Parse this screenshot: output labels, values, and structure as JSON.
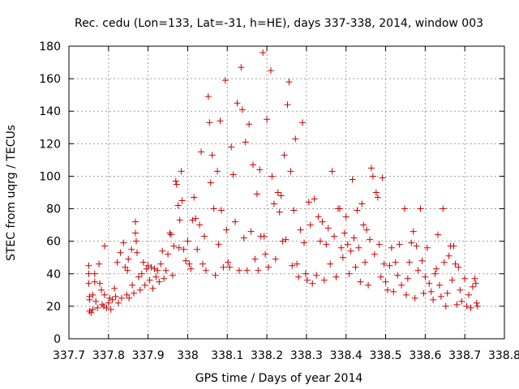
{
  "chart_data": {
    "type": "scatter",
    "title": "Rec. cedu (Lon=133, Lat=-31, h=HE), days 337-338, 2014, window 003",
    "xlabel": "GPS time / Days of year 2014",
    "ylabel": "STEC from uqrg / TECUs",
    "xlim": [
      337.7,
      338.8
    ],
    "ylim": [
      0,
      180
    ],
    "xticks": [
      337.7,
      337.8,
      337.9,
      338.0,
      338.1,
      338.2,
      338.3,
      338.4,
      338.5,
      338.6,
      338.7,
      338.8
    ],
    "xtick_labels": [
      "337.7",
      "337.8",
      "337.9",
      "338",
      "338.1",
      "338.2",
      "338.3",
      "338.4",
      "338.5",
      "338.6",
      "338.7",
      "338.8"
    ],
    "yticks": [
      0,
      20,
      40,
      60,
      80,
      100,
      120,
      140,
      160,
      180
    ],
    "ytick_labels": [
      "0",
      "20",
      "40",
      "60",
      "80",
      "100",
      "120",
      "140",
      "160",
      "180"
    ],
    "grid": true,
    "marker": "+",
    "color": "#cc0000",
    "series": [
      {
        "points": [
          [
            337.75,
            45
          ],
          [
            337.75,
            40
          ],
          [
            337.75,
            34
          ],
          [
            337.752,
            26
          ],
          [
            337.752,
            24
          ],
          [
            337.752,
            17
          ],
          [
            337.756,
            16
          ],
          [
            337.76,
            27
          ],
          [
            337.76,
            18
          ],
          [
            337.765,
            40
          ],
          [
            337.765,
            35
          ],
          [
            337.768,
            23
          ],
          [
            337.772,
            19
          ],
          [
            337.776,
            46
          ],
          [
            337.778,
            34
          ],
          [
            337.782,
            30
          ],
          [
            337.784,
            21
          ],
          [
            337.788,
            20
          ],
          [
            337.79,
            27
          ],
          [
            337.79,
            57
          ],
          [
            337.795,
            19
          ],
          [
            337.8,
            22
          ],
          [
            337.803,
            25
          ],
          [
            337.806,
            18
          ],
          [
            337.81,
            24
          ],
          [
            337.815,
            31
          ],
          [
            337.818,
            26
          ],
          [
            337.822,
            47
          ],
          [
            337.825,
            22
          ],
          [
            337.83,
            53
          ],
          [
            337.833,
            25
          ],
          [
            337.838,
            59
          ],
          [
            337.842,
            44
          ],
          [
            337.846,
            27
          ],
          [
            337.848,
            42
          ],
          [
            337.85,
            49
          ],
          [
            337.852,
            25
          ],
          [
            337.858,
            55
          ],
          [
            337.86,
            33
          ],
          [
            337.864,
            28
          ],
          [
            337.868,
            72
          ],
          [
            337.868,
            65
          ],
          [
            337.87,
            60
          ],
          [
            337.872,
            53
          ],
          [
            337.876,
            38
          ],
          [
            337.88,
            30
          ],
          [
            337.884,
            40
          ],
          [
            337.888,
            47
          ],
          [
            337.892,
            33
          ],
          [
            337.896,
            43
          ],
          [
            337.9,
            45
          ],
          [
            337.904,
            36
          ],
          [
            337.908,
            44
          ],
          [
            337.912,
            31
          ],
          [
            337.916,
            43
          ],
          [
            337.92,
            38
          ],
          [
            337.924,
            42
          ],
          [
            337.928,
            35
          ],
          [
            337.932,
            46
          ],
          [
            337.936,
            54
          ],
          [
            337.94,
            37
          ],
          [
            337.945,
            42
          ],
          [
            337.95,
            52
          ],
          [
            337.955,
            65
          ],
          [
            337.958,
            64
          ],
          [
            337.962,
            39
          ],
          [
            337.965,
            57
          ],
          [
            337.97,
            97
          ],
          [
            337.972,
            95
          ],
          [
            337.976,
            82
          ],
          [
            337.978,
            56
          ],
          [
            337.98,
            73
          ],
          [
            337.984,
            103
          ],
          [
            337.986,
            85
          ],
          [
            337.99,
            55
          ],
          [
            337.995,
            48
          ],
          [
            338.0,
            60
          ],
          [
            338.004,
            46
          ],
          [
            338.008,
            43
          ],
          [
            338.012,
            73
          ],
          [
            338.016,
            87
          ],
          [
            338.02,
            74
          ],
          [
            338.024,
            55
          ],
          [
            338.03,
            70
          ],
          [
            338.034,
            115
          ],
          [
            338.038,
            46
          ],
          [
            338.042,
            63
          ],
          [
            338.046,
            42
          ],
          [
            338.052,
            149
          ],
          [
            338.055,
            133
          ],
          [
            338.058,
            96
          ],
          [
            338.062,
            113
          ],
          [
            338.066,
            80
          ],
          [
            338.07,
            39
          ],
          [
            338.075,
            103
          ],
          [
            338.078,
            58
          ],
          [
            338.082,
            134
          ],
          [
            338.085,
            79
          ],
          [
            338.09,
            44
          ],
          [
            338.095,
            159
          ],
          [
            338.098,
            67
          ],
          [
            338.102,
            47
          ],
          [
            338.106,
            44
          ],
          [
            338.11,
            118
          ],
          [
            338.115,
            101
          ],
          [
            338.12,
            72
          ],
          [
            338.125,
            145
          ],
          [
            338.13,
            42
          ],
          [
            338.135,
            167
          ],
          [
            338.138,
            141
          ],
          [
            338.142,
            62
          ],
          [
            338.146,
            121
          ],
          [
            338.15,
            42
          ],
          [
            338.155,
            132
          ],
          [
            338.16,
            66
          ],
          [
            338.165,
            107
          ],
          [
            338.17,
            49
          ],
          [
            338.175,
            89
          ],
          [
            338.178,
            42
          ],
          [
            338.182,
            104
          ],
          [
            338.185,
            63
          ],
          [
            338.19,
            176
          ],
          [
            338.193,
            63
          ],
          [
            338.196,
            52
          ],
          [
            338.2,
            135
          ],
          [
            338.204,
            44
          ],
          [
            338.21,
            165
          ],
          [
            338.213,
            100
          ],
          [
            338.218,
            83
          ],
          [
            338.222,
            49
          ],
          [
            338.228,
            90
          ],
          [
            338.232,
            78
          ],
          [
            338.236,
            88
          ],
          [
            338.24,
            60
          ],
          [
            338.244,
            113
          ],
          [
            338.248,
            61
          ],
          [
            338.252,
            144
          ],
          [
            338.256,
            158
          ],
          [
            338.26,
            103
          ],
          [
            338.264,
            45
          ],
          [
            338.268,
            79
          ],
          [
            338.272,
            123
          ],
          [
            338.276,
            46
          ],
          [
            338.28,
            38
          ],
          [
            338.285,
            67
          ],
          [
            338.29,
            133
          ],
          [
            338.294,
            59
          ],
          [
            338.298,
            40
          ],
          [
            338.302,
            36
          ],
          [
            338.306,
            84
          ],
          [
            338.31,
            70
          ],
          [
            338.315,
            34
          ],
          [
            338.32,
            86
          ],
          [
            338.325,
            39
          ],
          [
            338.33,
            75
          ],
          [
            338.335,
            60
          ],
          [
            338.34,
            72
          ],
          [
            338.345,
            36
          ],
          [
            338.35,
            58
          ],
          [
            338.355,
            68
          ],
          [
            338.36,
            46
          ],
          [
            338.365,
            103
          ],
          [
            338.37,
            63
          ],
          [
            338.375,
            38
          ],
          [
            338.38,
            80
          ],
          [
            338.384,
            80
          ],
          [
            338.388,
            56
          ],
          [
            338.392,
            50
          ],
          [
            338.396,
            65
          ],
          [
            338.4,
            75
          ],
          [
            338.404,
            58
          ],
          [
            338.408,
            40
          ],
          [
            338.412,
            54
          ],
          [
            338.416,
            98
          ],
          [
            338.42,
            62
          ],
          [
            338.424,
            44
          ],
          [
            338.428,
            79
          ],
          [
            338.432,
            56
          ],
          [
            338.436,
            35
          ],
          [
            338.44,
            83
          ],
          [
            338.444,
            70
          ],
          [
            338.448,
            47
          ],
          [
            338.452,
            67
          ],
          [
            338.456,
            33
          ],
          [
            338.46,
            61
          ],
          [
            338.464,
            105
          ],
          [
            338.468,
            100
          ],
          [
            338.472,
            52
          ],
          [
            338.476,
            90
          ],
          [
            338.48,
            87
          ],
          [
            338.484,
            58
          ],
          [
            338.488,
            38
          ],
          [
            338.492,
            99
          ],
          [
            338.496,
            46
          ],
          [
            338.5,
            35
          ],
          [
            338.505,
            30
          ],
          [
            338.51,
            45
          ],
          [
            338.515,
            56
          ],
          [
            338.52,
            29
          ],
          [
            338.525,
            47
          ],
          [
            338.53,
            39
          ],
          [
            338.535,
            58
          ],
          [
            338.54,
            33
          ],
          [
            338.548,
            80
          ],
          [
            338.552,
            27
          ],
          [
            338.556,
            37
          ],
          [
            338.56,
            47
          ],
          [
            338.565,
            59
          ],
          [
            338.57,
            66
          ],
          [
            338.574,
            25
          ],
          [
            338.578,
            57
          ],
          [
            338.582,
            42
          ],
          [
            338.588,
            80
          ],
          [
            338.592,
            48
          ],
          [
            338.596,
            28
          ],
          [
            338.6,
            38
          ],
          [
            338.605,
            56
          ],
          [
            338.61,
            34
          ],
          [
            338.615,
            29
          ],
          [
            338.62,
            24
          ],
          [
            338.625,
            40
          ],
          [
            338.628,
            43
          ],
          [
            338.632,
            64
          ],
          [
            338.636,
            33
          ],
          [
            338.64,
            26
          ],
          [
            338.645,
            80
          ],
          [
            338.648,
            47
          ],
          [
            338.652,
            20
          ],
          [
            338.656,
            28
          ],
          [
            338.66,
            51
          ],
          [
            338.664,
            57
          ],
          [
            338.668,
            36
          ],
          [
            338.672,
            57
          ],
          [
            338.676,
            46
          ],
          [
            338.68,
            21
          ],
          [
            338.684,
            44
          ],
          [
            338.688,
            30
          ],
          [
            338.692,
            23
          ],
          [
            338.7,
            37
          ],
          [
            338.705,
            20
          ],
          [
            338.71,
            27
          ],
          [
            338.715,
            19
          ],
          [
            338.72,
            32
          ],
          [
            338.725,
            37
          ],
          [
            338.728,
            34
          ],
          [
            338.73,
            22
          ],
          [
            338.732,
            20
          ]
        ]
      }
    ]
  }
}
